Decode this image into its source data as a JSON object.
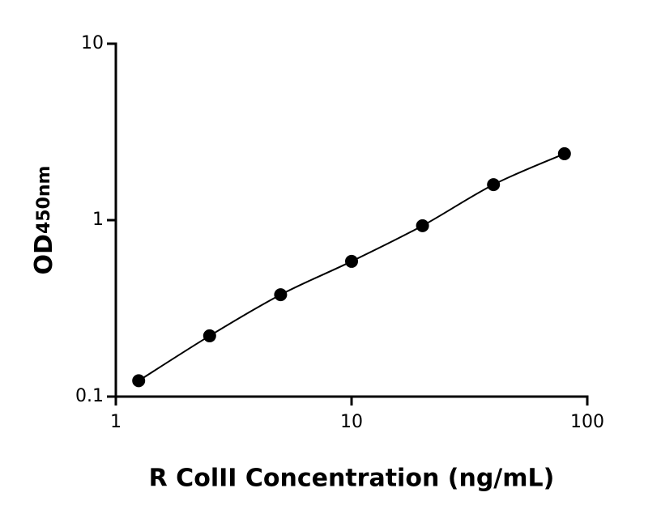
{
  "chart_data": {
    "type": "scatter",
    "x_label": "R ColII Concentration (ng/mL)",
    "y_label": "OD",
    "y_label_subscript": "450nm",
    "x": [
      1.25,
      2.5,
      5,
      10,
      20,
      40,
      80
    ],
    "values": [
      0.123,
      0.221,
      0.378,
      0.584,
      0.93,
      1.59,
      2.38
    ],
    "color": "#000000",
    "line": true,
    "x_log": true,
    "y_log": true,
    "xlim": [
      1,
      100
    ],
    "xticks": [
      1,
      10,
      100
    ],
    "ylim": [
      0.1,
      10
    ],
    "yticks": [
      0.1,
      1,
      10
    ]
  }
}
